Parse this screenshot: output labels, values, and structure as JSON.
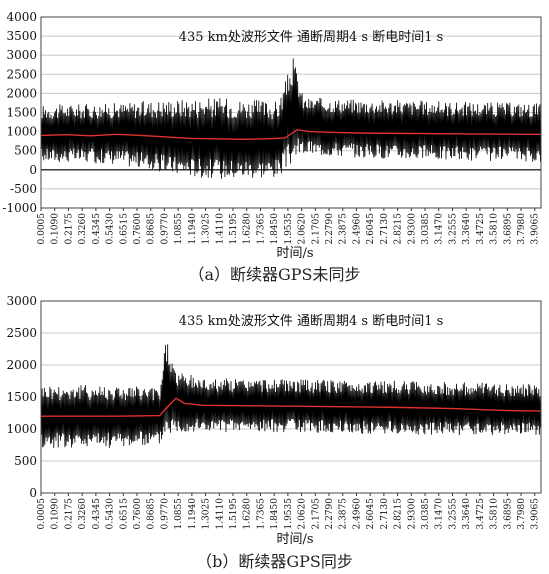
{
  "chart_data": [
    {
      "id": "a",
      "type": "line",
      "title": "435 km处波形文件  通断周期4 s  断电时间1 s",
      "xlabel": "时间/s",
      "caption": "（a）断续器GPS未同步",
      "ylim": [
        -1000,
        4000
      ],
      "y_ticks": [
        "4000",
        "3500",
        "3000",
        "2500",
        "2000",
        "1500",
        "1000",
        "500",
        "0",
        "-500",
        "-1000"
      ],
      "x_tick_labels": [
        "0.0005",
        "0.1090",
        "0.2175",
        "0.3260",
        "0.4345",
        "0.5430",
        "0.6515",
        "0.7600",
        "0.8685",
        "0.9770",
        "1.0855",
        "1.1940",
        "1.3025",
        "1.4110",
        "1.5195",
        "1.6280",
        "1.7365",
        "1.8450",
        "1.9535",
        "2.0620",
        "2.1705",
        "2.2790",
        "2.3875",
        "2.4960",
        "2.6045",
        "2.7130",
        "2.8215",
        "2.9300",
        "3.0385",
        "3.1470",
        "3.2555",
        "3.3640",
        "3.4725",
        "3.5810",
        "3.6895",
        "3.7980",
        "3.9065"
      ],
      "xlim": [
        0.0005,
        4.0
      ],
      "grid": true,
      "has_zero_line": true,
      "series": [
        {
          "color": "#000000",
          "kind": "oscillation",
          "envelope": [
            {
              "x": 0.0005,
              "low": 200,
              "high": 1700
            },
            {
              "x": 0.6,
              "low": 150,
              "high": 1750
            },
            {
              "x": 1.0,
              "low": -100,
              "high": 1850
            },
            {
              "x": 1.4,
              "low": -250,
              "high": 1900
            },
            {
              "x": 1.9,
              "low": -200,
              "high": 1800
            },
            {
              "x": 2.02,
              "low": 200,
              "high": 2950
            },
            {
              "x": 2.1,
              "low": 400,
              "high": 1900
            },
            {
              "x": 2.6,
              "low": 300,
              "high": 1850
            },
            {
              "x": 3.2,
              "low": 250,
              "high": 1800
            },
            {
              "x": 4.0,
              "low": 200,
              "high": 1750
            }
          ]
        },
        {
          "color": "#e03030",
          "kind": "mean",
          "points": [
            [
              0.0005,
              900
            ],
            [
              0.2,
              920
            ],
            [
              0.4,
              890
            ],
            [
              0.6,
              930
            ],
            [
              0.8,
              900
            ],
            [
              1.0,
              860
            ],
            [
              1.2,
              820
            ],
            [
              1.4,
              810
            ],
            [
              1.6,
              800
            ],
            [
              1.8,
              810
            ],
            [
              1.95,
              830
            ],
            [
              2.05,
              1050
            ],
            [
              2.15,
              1000
            ],
            [
              2.3,
              980
            ],
            [
              2.6,
              960
            ],
            [
              3.0,
              950
            ],
            [
              3.4,
              940
            ],
            [
              3.8,
              930
            ],
            [
              4.0,
              930
            ]
          ]
        }
      ]
    },
    {
      "id": "b",
      "type": "line",
      "title": "435 km处波形文件  通断周期4 s  断电时间1 s",
      "xlabel": "时间/s",
      "caption": "（b）断续器GPS同步",
      "ylim": [
        0,
        3000
      ],
      "y_ticks": [
        "3000",
        "2500",
        "2000",
        "1500",
        "1000",
        "500",
        "0"
      ],
      "x_tick_labels": [
        "0.0005",
        "0.1090",
        "0.2175",
        "0.3260",
        "0.4345",
        "0.5430",
        "0.6515",
        "0.7600",
        "0.8685",
        "0.9770",
        "1.0855",
        "1.1940",
        "1.3025",
        "1.4110",
        "1.5195",
        "1.6280",
        "1.7365",
        "1.8450",
        "1.9535",
        "2.0620",
        "2.1705",
        "2.2790",
        "2.3875",
        "2.4960",
        "2.6045",
        "2.7130",
        "2.8215",
        "2.9300",
        "3.0385",
        "3.1470",
        "3.2555",
        "3.3640",
        "3.4725",
        "3.5810",
        "3.6895",
        "3.7980",
        "3.9065"
      ],
      "xlim": [
        0.0005,
        4.0
      ],
      "grid": true,
      "has_zero_line": false,
      "series": [
        {
          "color": "#000000",
          "kind": "oscillation",
          "envelope": [
            {
              "x": 0.0005,
              "low": 700,
              "high": 1700
            },
            {
              "x": 0.5,
              "low": 700,
              "high": 1700
            },
            {
              "x": 0.95,
              "low": 750,
              "high": 1650
            },
            {
              "x": 1.0,
              "low": 900,
              "high": 2450
            },
            {
              "x": 1.08,
              "low": 950,
              "high": 1900
            },
            {
              "x": 1.3,
              "low": 950,
              "high": 1800
            },
            {
              "x": 2.0,
              "low": 950,
              "high": 1780
            },
            {
              "x": 3.0,
              "low": 900,
              "high": 1750
            },
            {
              "x": 4.0,
              "low": 900,
              "high": 1700
            }
          ]
        },
        {
          "color": "#e03030",
          "kind": "mean",
          "points": [
            [
              0.0005,
              1200
            ],
            [
              0.3,
              1200
            ],
            [
              0.6,
              1200
            ],
            [
              0.95,
              1210
            ],
            [
              1.0,
              1320
            ],
            [
              1.08,
              1480
            ],
            [
              1.15,
              1400
            ],
            [
              1.3,
              1370
            ],
            [
              1.8,
              1360
            ],
            [
              2.3,
              1350
            ],
            [
              2.8,
              1340
            ],
            [
              3.3,
              1320
            ],
            [
              3.7,
              1290
            ],
            [
              4.0,
              1280
            ]
          ]
        }
      ]
    }
  ]
}
